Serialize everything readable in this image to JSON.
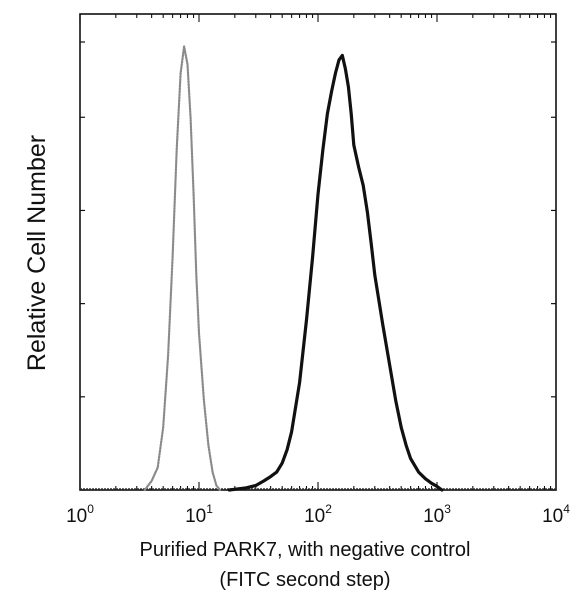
{
  "chart_data": {
    "type": "line",
    "title": "",
    "xlabel": "Purified PARK7, with negative control",
    "xlabel_line2": "(FITC second step)",
    "ylabel": "Relative Cell Number",
    "x_scale": "log",
    "xlim": [
      1,
      10000
    ],
    "x_ticks": [
      {
        "base": "10",
        "exp": "0",
        "value": 1
      },
      {
        "base": "10",
        "exp": "1",
        "value": 10
      },
      {
        "base": "10",
        "exp": "2",
        "value": 100
      },
      {
        "base": "10",
        "exp": "3",
        "value": 1000
      },
      {
        "base": "10",
        "exp": "4",
        "value": 10000
      }
    ],
    "ylim": [
      0,
      100
    ],
    "y_tick_values": [
      0,
      20.8,
      41.6,
      62.4,
      83.2,
      100
    ],
    "grid": false,
    "legend": "none",
    "series": [
      {
        "style": "dotted-gray",
        "color": "#8a8a8a",
        "x": [
          3.5,
          4.0,
          4.5,
          5.0,
          5.5,
          6.0,
          6.5,
          7.0,
          7.5,
          8.0,
          8.5,
          9.0,
          9.5,
          10.0,
          11.0,
          12.0,
          13.0,
          14.0,
          15.0
        ],
        "y": [
          0,
          2,
          5,
          14,
          30,
          52,
          76,
          93,
          99,
          95,
          83,
          66,
          48,
          35,
          20,
          10,
          4,
          1,
          0
        ]
      },
      {
        "style": "solid-black",
        "color": "#111111",
        "x": [
          18,
          25,
          30,
          35,
          40,
          45,
          50,
          55,
          60,
          70,
          80,
          90,
          100,
          110,
          120,
          130,
          140,
          150,
          160,
          170,
          180,
          190,
          200,
          220,
          240,
          260,
          280,
          300,
          350,
          400,
          450,
          500,
          550,
          600,
          700,
          800,
          900,
          1000,
          1100
        ],
        "y": [
          0,
          0.5,
          1,
          2,
          3,
          4,
          6,
          9,
          13,
          24,
          38,
          52,
          66,
          76,
          84,
          89,
          93,
          96,
          97,
          94,
          90,
          84,
          77,
          72,
          68,
          62,
          55,
          48,
          37,
          28,
          20,
          14,
          10,
          7,
          4,
          2.5,
          1.5,
          0.8,
          0
        ]
      }
    ]
  }
}
